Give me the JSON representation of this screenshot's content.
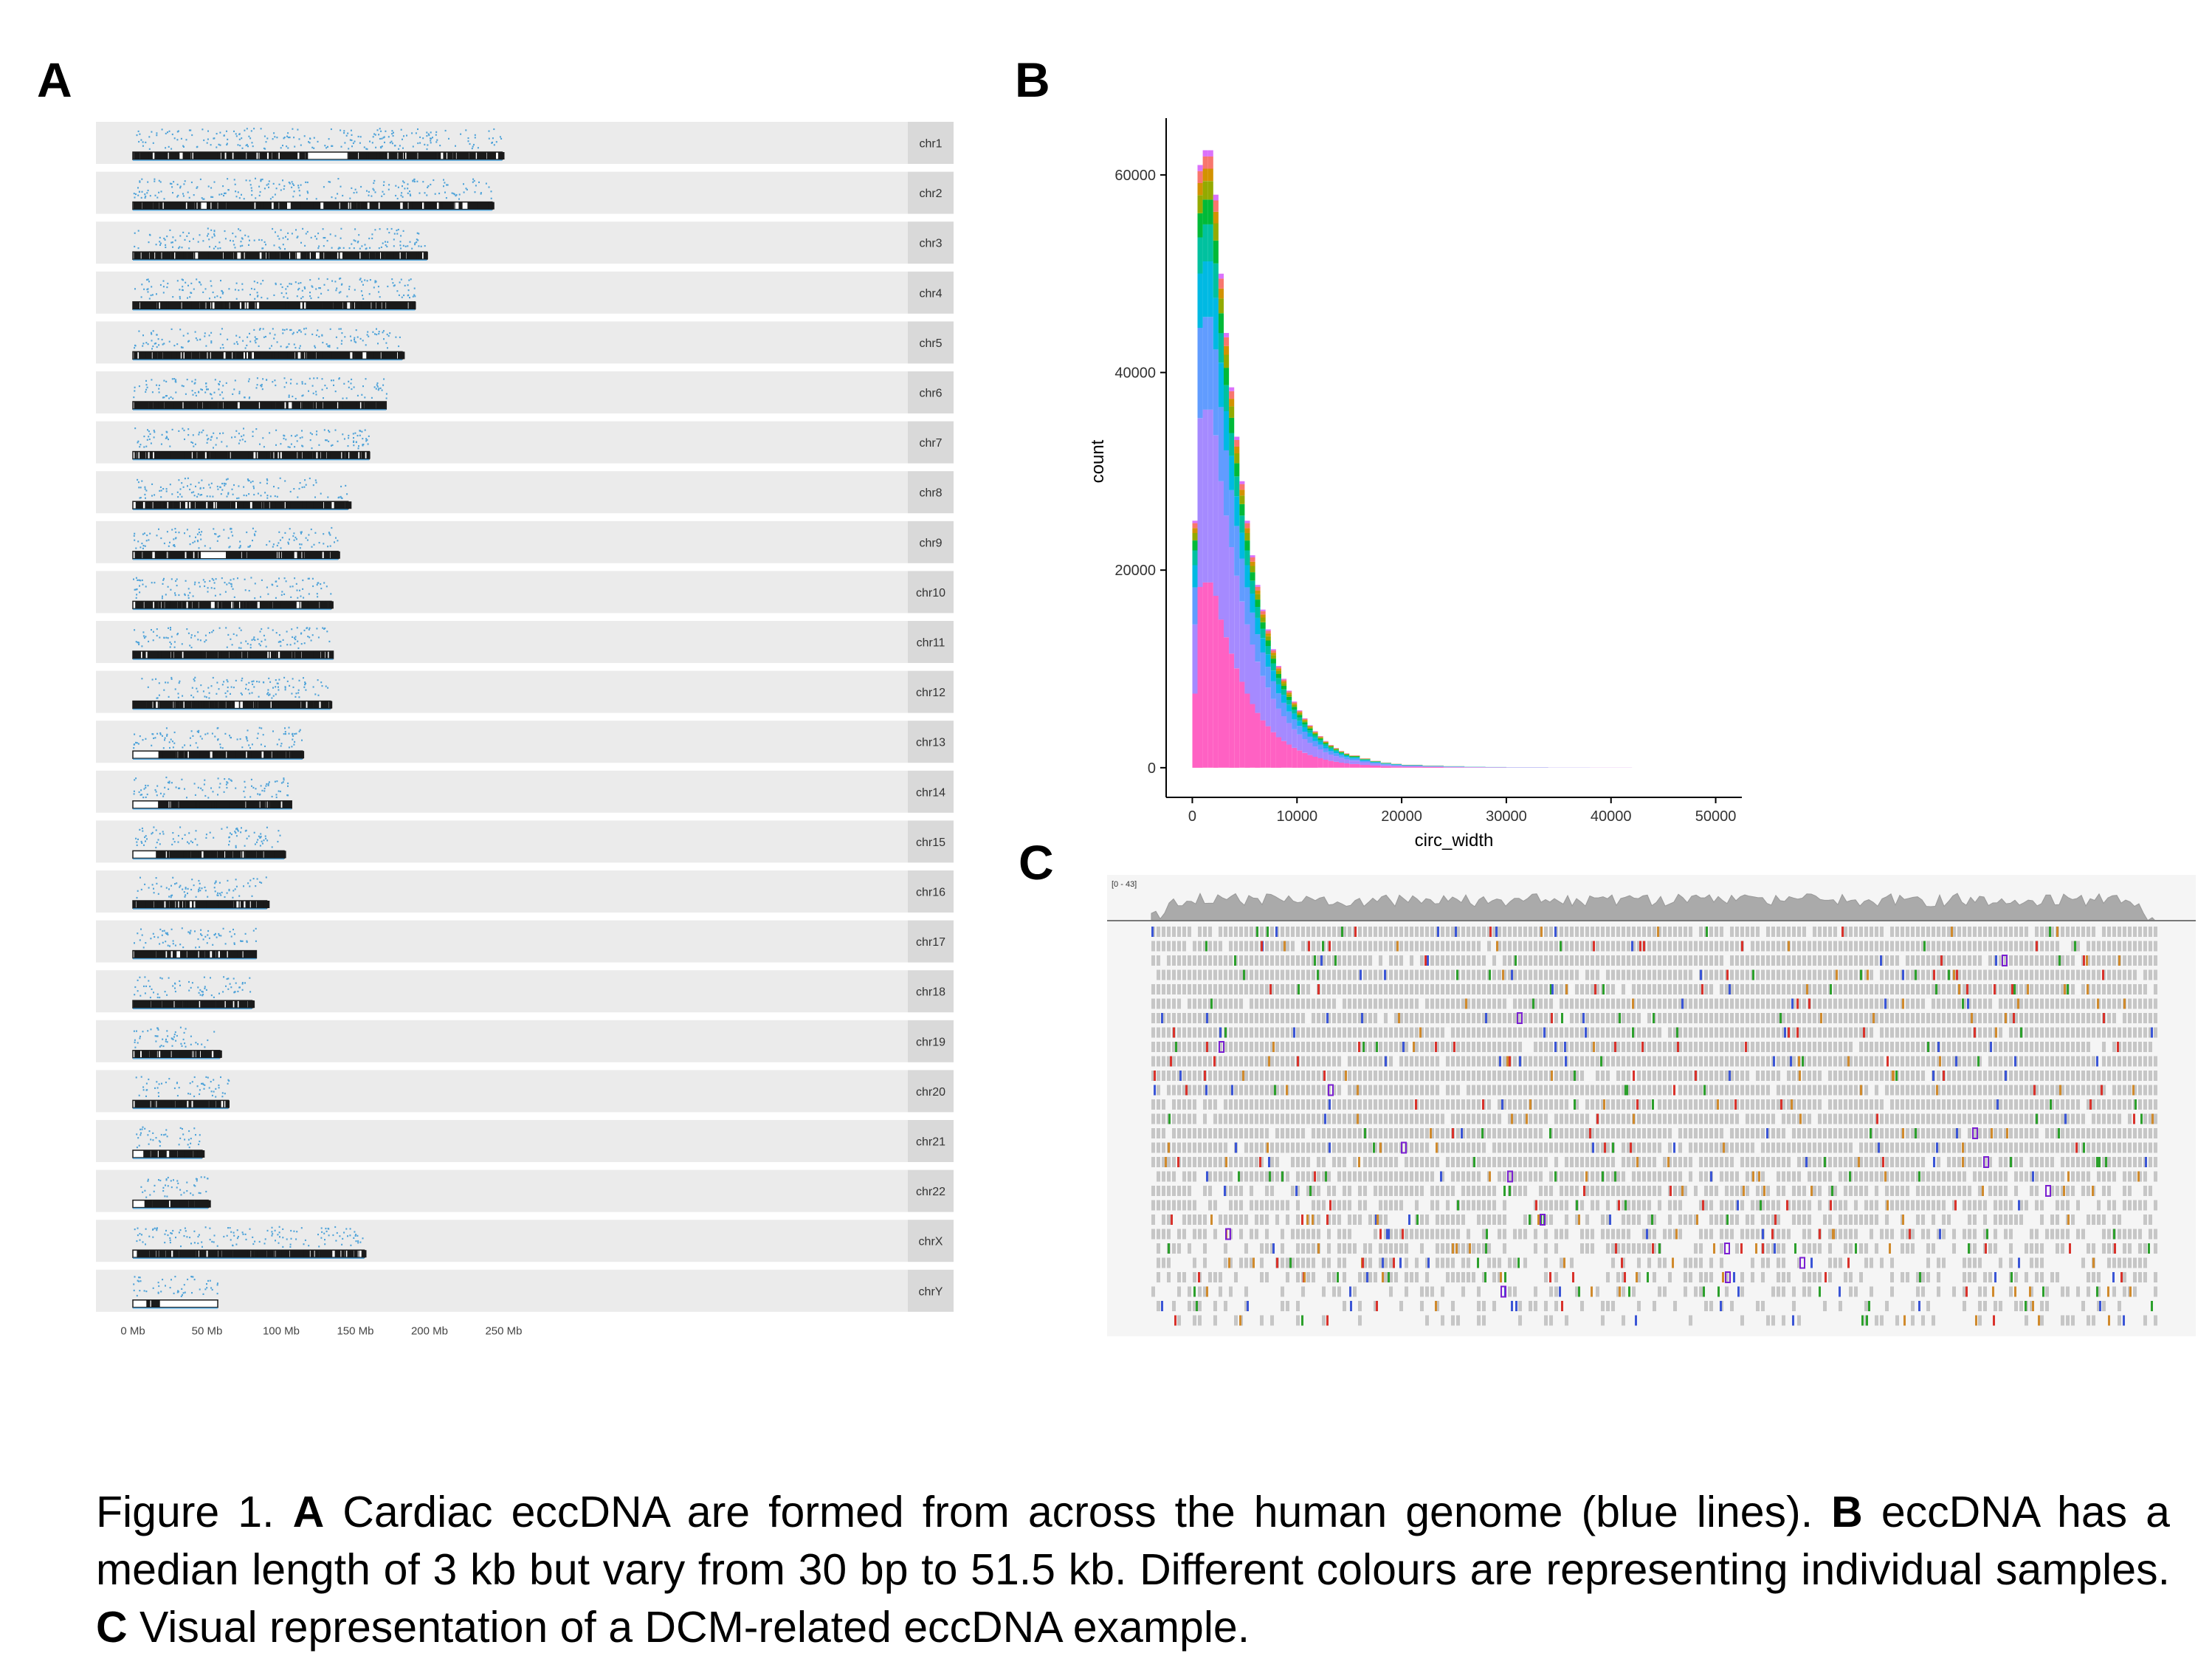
{
  "panels": {
    "a_letter": "A",
    "b_letter": "B",
    "c_letter": "C"
  },
  "panelA": {
    "chromosomes": [
      {
        "name": "chr1",
        "length": 248.96
      },
      {
        "name": "chr2",
        "length": 242.19
      },
      {
        "name": "chr3",
        "length": 198.3
      },
      {
        "name": "chr4",
        "length": 190.21
      },
      {
        "name": "chr5",
        "length": 181.54
      },
      {
        "name": "chr6",
        "length": 170.81
      },
      {
        "name": "chr7",
        "length": 159.35
      },
      {
        "name": "chr8",
        "length": 145.14
      },
      {
        "name": "chr9",
        "length": 138.39
      },
      {
        "name": "chr10",
        "length": 133.8
      },
      {
        "name": "chr11",
        "length": 135.09
      },
      {
        "name": "chr12",
        "length": 133.28
      },
      {
        "name": "chr13",
        "length": 114.36
      },
      {
        "name": "chr14",
        "length": 107.04
      },
      {
        "name": "chr15",
        "length": 101.99
      },
      {
        "name": "chr16",
        "length": 90.34
      },
      {
        "name": "chr17",
        "length": 83.26
      },
      {
        "name": "chr18",
        "length": 80.37
      },
      {
        "name": "chr19",
        "length": 58.62
      },
      {
        "name": "chr20",
        "length": 64.44
      },
      {
        "name": "chr21",
        "length": 46.71
      },
      {
        "name": "chr22",
        "length": 50.82
      },
      {
        "name": "chrX",
        "length": 156.04
      },
      {
        "name": "chrY",
        "length": 57.23
      }
    ],
    "x_ticks": [
      "0 Mb",
      "50 Mb",
      "100 Mb",
      "150 Mb",
      "200 Mb",
      "250 Mb"
    ],
    "x_tick_values": [
      0,
      50,
      100,
      150,
      200,
      250
    ],
    "colors": {
      "strip": "#ebebeb",
      "label_strip": "#d9d9d9",
      "ecc_line": "#4fa3d9",
      "ideogram": "#1a1a1a"
    }
  },
  "chart_data": {
    "type": "bar",
    "subtype": "stacked histogram",
    "xlabel": "circ_width",
    "ylabel": "count",
    "xlim": [
      -2500,
      52500
    ],
    "ylim": [
      -3000,
      65000
    ],
    "x_ticks": [
      0,
      10000,
      20000,
      30000,
      40000,
      50000
    ],
    "y_ticks": [
      0,
      20000,
      40000,
      60000
    ],
    "bin_width": 500,
    "bin_starts": [
      0,
      500,
      1000,
      1500,
      2000,
      2500,
      3000,
      3500,
      4000,
      4500,
      5000,
      5500,
      6000,
      6500,
      7000,
      7500,
      8000,
      8500,
      9000,
      9500,
      10000,
      10500,
      11000,
      11500,
      12000,
      12500,
      13000,
      13500,
      14000,
      14500,
      15000,
      16000,
      17000,
      18000,
      19000,
      20000,
      22000,
      24000,
      26000,
      28000,
      30000,
      34000,
      38000,
      42000,
      46000
    ],
    "total_counts": [
      25000,
      61000,
      62500,
      62500,
      58000,
      50000,
      44000,
      38500,
      33500,
      29000,
      25000,
      21500,
      18500,
      16000,
      14000,
      12000,
      10300,
      9000,
      7800,
      6700,
      5800,
      5000,
      4300,
      3700,
      3200,
      2700,
      2300,
      2000,
      1700,
      1450,
      1250,
      950,
      700,
      520,
      400,
      300,
      220,
      160,
      110,
      80,
      50,
      30,
      15,
      8,
      3
    ],
    "series_colors": [
      "#f8766d",
      "#d39200",
      "#93aa00",
      "#00ba38",
      "#00c19f",
      "#00b9e3",
      "#619cff",
      "#a58aff",
      "#db72fb",
      "#ff61c3"
    ],
    "grid": false,
    "legend": "none"
  },
  "panelC": {
    "track_label": "[0 - 43]",
    "colors": {
      "coverage": "#aaaaaa",
      "read": "#c6c6c6",
      "A": "#2ca02c",
      "C": "#3a55d6",
      "G": "#d08a2c",
      "T": "#d9322b",
      "insertion": "#7a1fd1"
    }
  },
  "caption": {
    "prefix": "Figure 1. ",
    "a_label": "A",
    "a_text": " Cardiac eccDNA are formed from across the human genome (blue lines). ",
    "b_label": "B",
    "b_text": " eccDNA has a median length of 3 kb but vary from 30 bp to 51.5 kb. Different colours are representing individual samples. ",
    "c_label": "C",
    "c_text": " Visual representation of a DCM-related eccDNA example."
  }
}
